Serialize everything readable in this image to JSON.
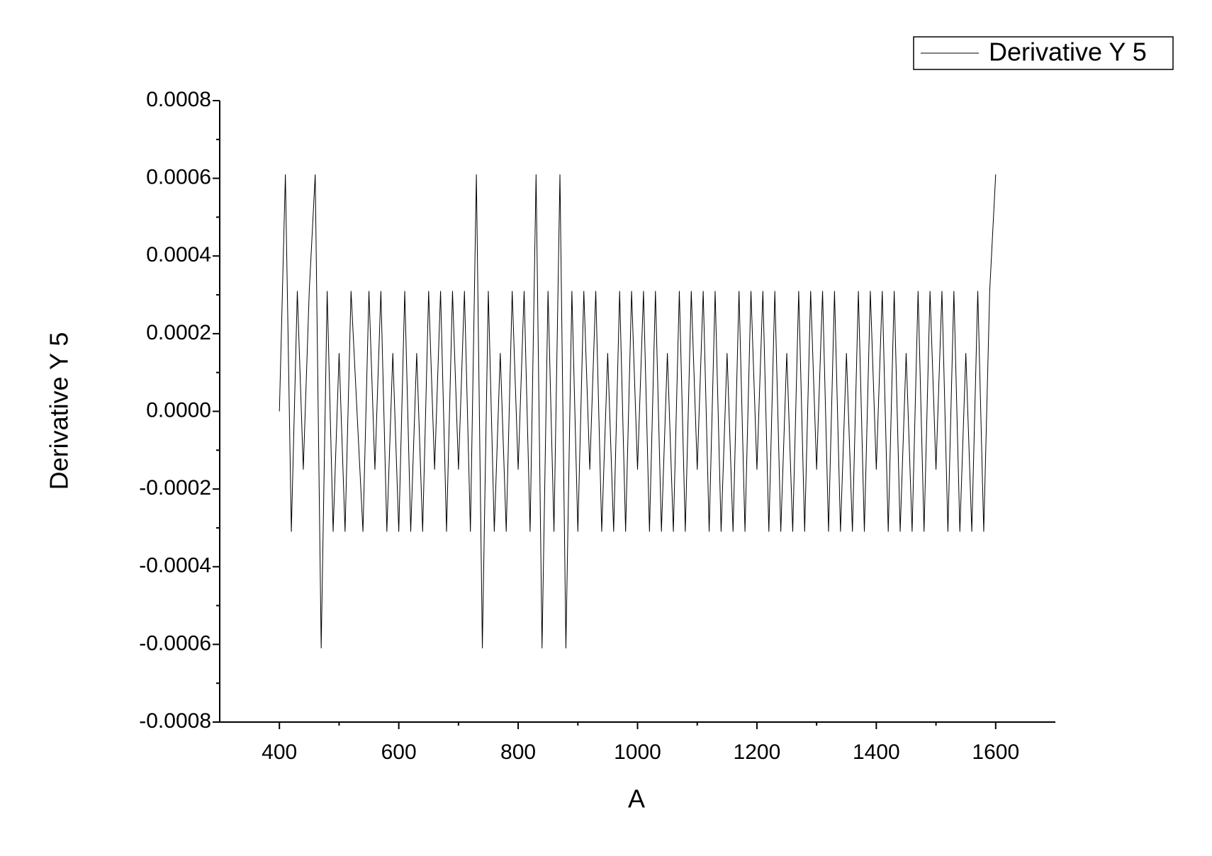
{
  "chart_data": {
    "type": "line",
    "xlabel": "A",
    "ylabel": "Derivative Y 5",
    "x": [
      400,
      410,
      420,
      430,
      440,
      450,
      460,
      470,
      480,
      490,
      500,
      510,
      520,
      530,
      540,
      550,
      560,
      570,
      580,
      590,
      600,
      610,
      620,
      630,
      640,
      650,
      660,
      670,
      680,
      690,
      700,
      710,
      720,
      730,
      740,
      750,
      760,
      770,
      780,
      790,
      800,
      810,
      820,
      830,
      840,
      850,
      860,
      870,
      880,
      890,
      900,
      910,
      920,
      930,
      940,
      950,
      960,
      970,
      980,
      990,
      1000,
      1010,
      1020,
      1030,
      1040,
      1050,
      1060,
      1070,
      1080,
      1090,
      1100,
      1110,
      1120,
      1130,
      1140,
      1150,
      1160,
      1170,
      1180,
      1190,
      1200,
      1210,
      1220,
      1230,
      1240,
      1250,
      1260,
      1270,
      1280,
      1290,
      1300,
      1310,
      1320,
      1330,
      1340,
      1350,
      1360,
      1370,
      1380,
      1390,
      1400,
      1410,
      1420,
      1430,
      1440,
      1450,
      1460,
      1470,
      1480,
      1490,
      1500,
      1510,
      1520,
      1530,
      1540,
      1550,
      1560,
      1570,
      1580,
      1590,
      1600
    ],
    "series": [
      {
        "name": "Derivative Y 5",
        "color": "#000000",
        "values": [
          0,
          0.00061,
          -0.00031,
          0.00031,
          -0.00015,
          0.00031,
          0.00061,
          -0.00061,
          0.00031,
          -0.00031,
          0.00015,
          -0.00031,
          0.00031,
          0,
          -0.00031,
          0.00031,
          -0.00015,
          0.00031,
          -0.00031,
          0.00015,
          -0.00031,
          0.00031,
          -0.00031,
          0.00015,
          -0.00031,
          0.00031,
          -0.00015,
          0.00031,
          -0.00031,
          0.00031,
          -0.00015,
          0.00031,
          -0.00031,
          0.00061,
          -0.00061,
          0.00031,
          -0.00031,
          0.00015,
          -0.00031,
          0.00031,
          -0.00015,
          0.00031,
          -0.00031,
          0.00061,
          -0.00061,
          0.00031,
          -0.00031,
          0.00061,
          -0.00061,
          0.00031,
          -0.00031,
          0.00031,
          -0.00015,
          0.00031,
          -0.00031,
          0.00015,
          -0.00031,
          0.00031,
          -0.00031,
          0.00031,
          -0.00015,
          0.00031,
          -0.00031,
          0.00031,
          -0.00031,
          0.00015,
          -0.00031,
          0.00031,
          -0.00031,
          0.00031,
          -0.00015,
          0.00031,
          -0.00031,
          0.00031,
          -0.00031,
          0.00015,
          -0.00031,
          0.00031,
          -0.00031,
          0.00031,
          -0.00015,
          0.00031,
          -0.00031,
          0.00031,
          -0.00031,
          0.00015,
          -0.00031,
          0.00031,
          -0.00031,
          0.00031,
          -0.00015,
          0.00031,
          -0.00031,
          0.00031,
          -0.00031,
          0.00015,
          -0.00031,
          0.00031,
          -0.00031,
          0.00031,
          -0.00015,
          0.00031,
          -0.00031,
          0.00031,
          -0.00031,
          0.00015,
          -0.00031,
          0.00031,
          -0.00031,
          0.00031,
          -0.00015,
          0.00031,
          -0.00031,
          0.00031,
          -0.00031,
          0.00015,
          -0.00031,
          0.00031,
          -0.00031,
          0.00031,
          0.00061
        ]
      }
    ],
    "xlim": [
      300,
      1700
    ],
    "xticks": [
      400,
      600,
      800,
      1000,
      1200,
      1400,
      1600
    ],
    "ylim": [
      -0.0008,
      0.0008
    ],
    "yticks": [
      {
        "value": -0.0008,
        "label": "-0.0008"
      },
      {
        "value": -0.0006,
        "label": "-0.0006"
      },
      {
        "value": -0.0004,
        "label": "-0.0004"
      },
      {
        "value": -0.0002,
        "label": "-0.0002"
      },
      {
        "value": 0,
        "label": "0.0000"
      },
      {
        "value": 0.0002,
        "label": "0.0002"
      },
      {
        "value": 0.0004,
        "label": "0.0004"
      },
      {
        "value": 0.0006,
        "label": "0.0006"
      },
      {
        "value": 0.0008,
        "label": "0.0008"
      }
    ],
    "grid": false,
    "legend": "top-right"
  }
}
